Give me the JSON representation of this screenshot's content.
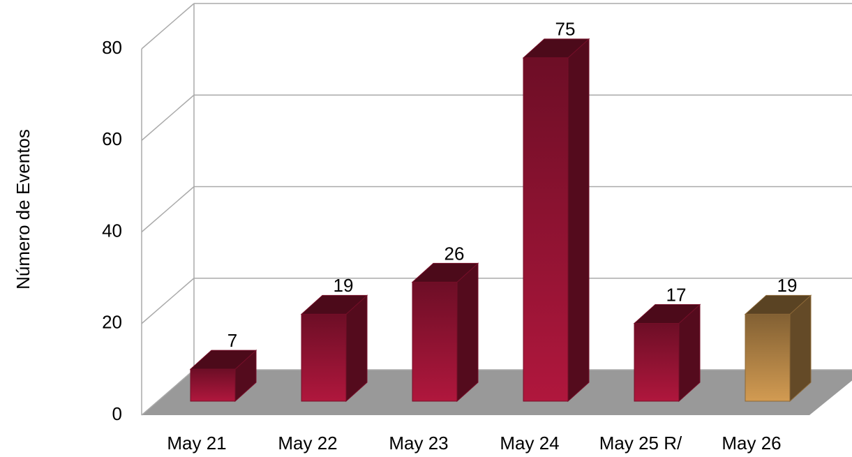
{
  "chart_data": {
    "type": "bar3d",
    "y_axis_label": "Número de Eventos",
    "categories": [
      "May 21",
      "May 22",
      "May 23",
      "May 24",
      "May 25 R/",
      "May 26"
    ],
    "values": [
      7,
      19,
      26,
      75,
      17,
      19
    ],
    "colors": [
      "#a8163a",
      "#a8163a",
      "#a8163a",
      "#a8163a",
      "#a8163a",
      "#c8944e"
    ],
    "ylim": [
      0,
      80
    ],
    "yticks": [
      0,
      20,
      40,
      60,
      80
    ],
    "grid": true
  }
}
